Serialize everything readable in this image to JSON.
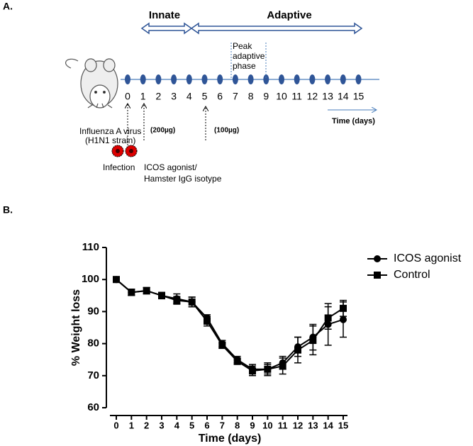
{
  "panel_a": {
    "label": "A.",
    "innate": "Innate",
    "adaptive": "Adaptive",
    "peak_lines": [
      "Peak",
      "adaptive",
      "phase"
    ],
    "days": [
      0,
      1,
      2,
      3,
      4,
      5,
      6,
      7,
      8,
      9,
      10,
      11,
      12,
      13,
      14,
      15
    ],
    "time_label": "Time (days)",
    "virus_lines": [
      "Influenza A virus",
      "(H1N1 strain)"
    ],
    "dose_1": "(200µg)",
    "dose_2": "(100µg)",
    "infection": "Infection",
    "treatment_lines": [
      "ICOS agonist/",
      "Hamster IgG isotype"
    ]
  },
  "panel_b_label": "B.",
  "chart_data": {
    "type": "line",
    "x_label": "Time (days)",
    "y_label": "% Weight loss",
    "x": [
      0,
      1,
      2,
      3,
      4,
      5,
      6,
      7,
      8,
      9,
      10,
      11,
      12,
      13,
      14,
      15
    ],
    "xlim": [
      0,
      15
    ],
    "xticks": [
      0,
      1,
      2,
      3,
      4,
      5,
      6,
      7,
      8,
      9,
      10,
      11,
      12,
      13,
      14,
      15
    ],
    "ylim": [
      60,
      110
    ],
    "yticks": [
      60,
      70,
      80,
      90,
      100,
      110
    ],
    "legend": "right",
    "series": [
      {
        "name": "ICOS agonist",
        "color": "#000000",
        "marker": "circle",
        "values": [
          100,
          96,
          96.5,
          95,
          94,
          93,
          88,
          80,
          75,
          72,
          72,
          74,
          79,
          82,
          86,
          87.5
        ],
        "errors": [
          0.3,
          1,
          1,
          1,
          1.5,
          1.5,
          1,
          1,
          1,
          1.5,
          1.5,
          2,
          3,
          4,
          6.5,
          5.5
        ]
      },
      {
        "name": "Control",
        "color": "#000000",
        "marker": "square",
        "values": [
          100,
          96,
          96.5,
          95,
          93.5,
          93,
          87,
          79.5,
          74.5,
          71.5,
          72,
          73,
          78,
          81,
          88,
          91
        ],
        "errors": [
          0.3,
          1,
          1,
          0.8,
          1.2,
          1.5,
          1.5,
          1,
          1,
          1.5,
          2,
          2.5,
          4,
          4.5,
          3.5,
          2.5
        ]
      }
    ]
  }
}
